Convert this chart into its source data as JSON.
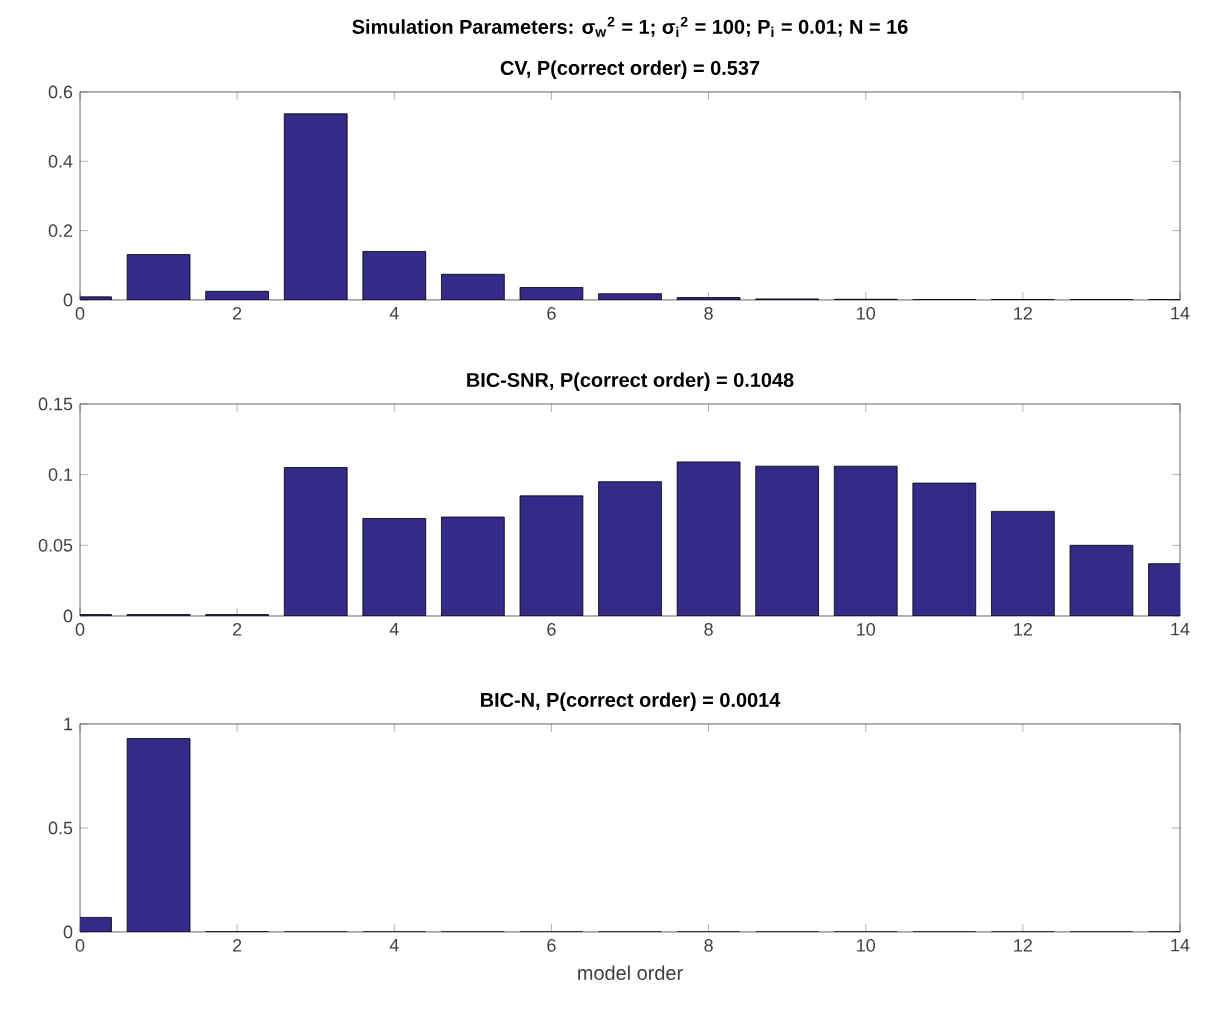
{
  "chart_data": [
    {
      "type": "bar",
      "title": "Simulation Parameters: σ$_{w}$$^{2}$ = 1; σ$_{i}$$^{2}$ = 100; P$_{i}$ = 0.01; N = 16",
      "subtitle": "CV, P(correct order) = 0.537",
      "x": [
        0,
        1,
        2,
        3,
        4,
        5,
        6,
        7,
        8,
        9,
        10,
        11,
        12,
        13,
        14
      ],
      "values": [
        0.009,
        0.131,
        0.025,
        0.537,
        0.14,
        0.074,
        0.036,
        0.018,
        0.007,
        0.003,
        0.002,
        0.001,
        0.001,
        0.001,
        0.001
      ],
      "color": "#342a87",
      "xlim": [
        0,
        14
      ],
      "xticks": [
        0,
        2,
        4,
        6,
        8,
        10,
        12,
        14
      ],
      "ylim": [
        0,
        0.6
      ],
      "yticks": [
        0,
        0.2,
        0.4,
        0.6
      ]
    },
    {
      "type": "bar",
      "title": "BIC-SNR, P(correct order) = 0.1048",
      "x": [
        0,
        1,
        2,
        3,
        4,
        5,
        6,
        7,
        8,
        9,
        10,
        11,
        12,
        13,
        14
      ],
      "values": [
        0.001,
        0.001,
        0.001,
        0.105,
        0.069,
        0.07,
        0.085,
        0.095,
        0.109,
        0.106,
        0.106,
        0.094,
        0.074,
        0.05,
        0.037
      ],
      "color": "#342a87",
      "xlim": [
        0,
        14
      ],
      "xticks": [
        0,
        2,
        4,
        6,
        8,
        10,
        12,
        14
      ],
      "ylim": [
        0,
        0.15
      ],
      "yticks": [
        0,
        0.05,
        0.1,
        0.15
      ]
    },
    {
      "type": "bar",
      "title": "BIC-N, P(correct order) = 0.0014",
      "xlabel": "model order",
      "x": [
        0,
        1,
        2,
        3,
        4,
        5,
        6,
        7,
        8,
        9,
        10,
        11,
        12,
        13,
        14
      ],
      "values": [
        0.07,
        0.93,
        0.001,
        0,
        0,
        0,
        0,
        0,
        0,
        0,
        0,
        0,
        0,
        0,
        0
      ],
      "color": "#342a87",
      "xlim": [
        0,
        14
      ],
      "xticks": [
        0,
        2,
        4,
        6,
        8,
        10,
        12,
        14
      ],
      "ylim": [
        0,
        1
      ],
      "yticks": [
        0,
        0.5,
        1
      ]
    }
  ]
}
